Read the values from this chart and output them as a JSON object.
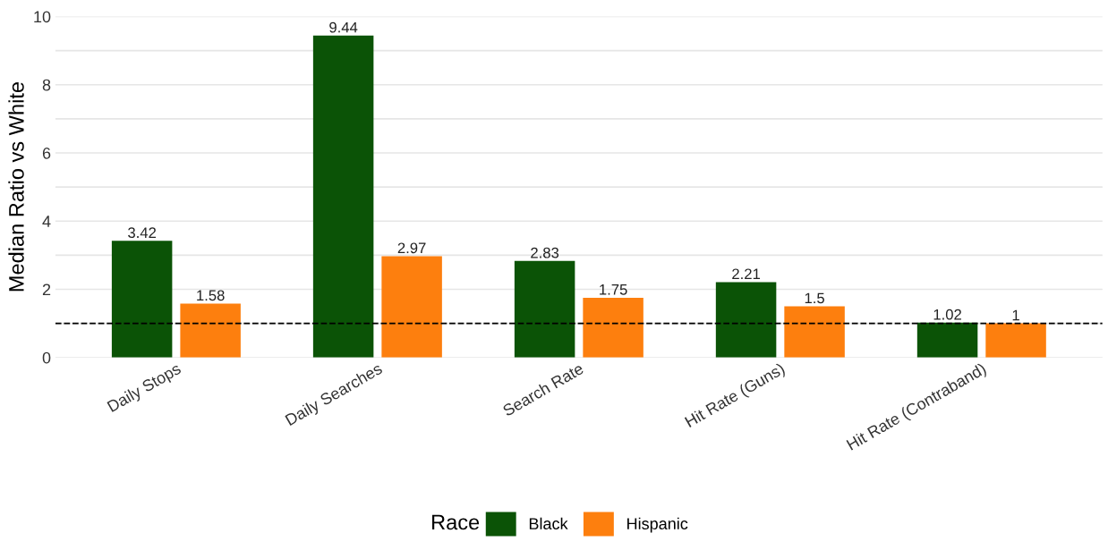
{
  "chart_data": {
    "type": "bar",
    "ylabel": "Median Ratio vs White",
    "legend_title": "Race",
    "categories": [
      "Daily Stops",
      "Daily Searches",
      "Search Rate",
      "Hit Rate (Guns)",
      "Hit Rate (Contraband)"
    ],
    "series": [
      {
        "name": "Black",
        "color": "#0b5306",
        "values": [
          3.42,
          9.44,
          2.83,
          2.21,
          1.02
        ]
      },
      {
        "name": "Hispanic",
        "color": "#fd7f0e",
        "values": [
          1.58,
          2.97,
          1.75,
          1.5,
          1
        ]
      }
    ],
    "ylim": [
      0,
      10
    ],
    "yticks": [
      0,
      {
        "value": 1,
        "label": null
      },
      2,
      {
        "value": 3,
        "label": null
      },
      4,
      {
        "value": 5,
        "label": null
      },
      6,
      {
        "value": 7,
        "label": null
      },
      8,
      {
        "value": 9,
        "label": null
      },
      10
    ],
    "ref_lines": [
      {
        "axis": "y",
        "value": 1,
        "color": "#000000",
        "line_style": "dashed"
      }
    ],
    "data_labels": true,
    "grid": "y",
    "legend": "bottom"
  }
}
